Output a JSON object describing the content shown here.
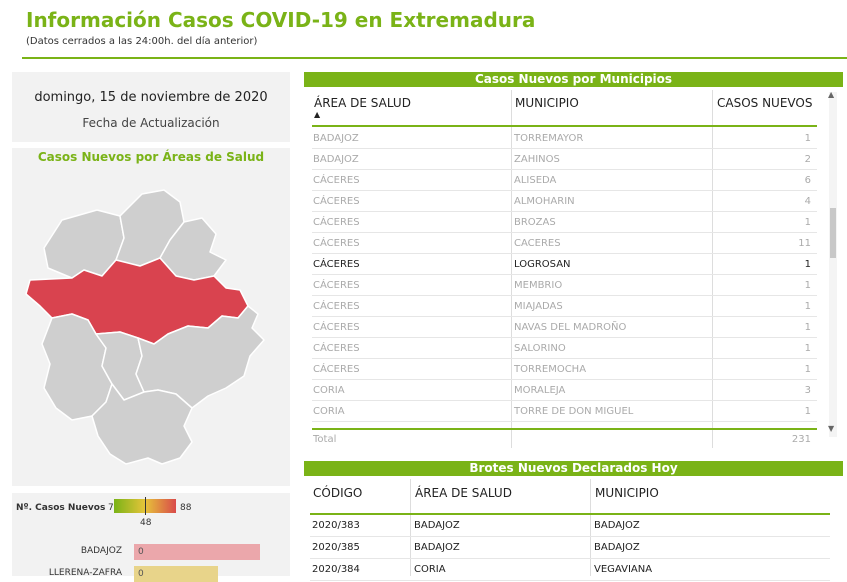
{
  "header": {
    "title": "Información Casos COVID-19 en Extremadura",
    "subtitle": "(Datos cerrados a las 24:00h. del día anterior)"
  },
  "date_card": {
    "date": "domingo, 15 de noviembre de 2020",
    "label": "Fecha de Actualización"
  },
  "map": {
    "title": "Casos Nuevos por Áreas de Salud",
    "highlight_color": "#d9434f",
    "base_color": "#cfcfcf"
  },
  "legend": {
    "label": "Nº. Casos Nuevos",
    "min": "7",
    "max": "88",
    "mid": "48",
    "bars": [
      {
        "name": "BADAJOZ",
        "value": "0",
        "color": "#eba7ab",
        "fraction": 0.84
      },
      {
        "name": "LLERENA-ZAFRA",
        "value": "0",
        "color": "#e8d48a",
        "fraction": 0.56
      }
    ]
  },
  "municipios": {
    "title": "Casos Nuevos por Municipios",
    "columns": [
      "ÁREA DE SALUD",
      "MUNICIPIO",
      "CASOS NUEVOS"
    ],
    "sort_icon": "sort-up-icon",
    "rows": [
      {
        "area": "BADAJOZ",
        "municipio": "TORREMAYOR",
        "casos": "1",
        "highlight": false
      },
      {
        "area": "BADAJOZ",
        "municipio": "ZAHINOS",
        "casos": "2",
        "highlight": false
      },
      {
        "area": "CÁCERES",
        "municipio": "ALISEDA",
        "casos": "6",
        "highlight": false
      },
      {
        "area": "CÁCERES",
        "municipio": "ALMOHARIN",
        "casos": "4",
        "highlight": false
      },
      {
        "area": "CÁCERES",
        "municipio": "BROZAS",
        "casos": "1",
        "highlight": false
      },
      {
        "area": "CÁCERES",
        "municipio": "CACERES",
        "casos": "11",
        "highlight": false
      },
      {
        "area": "CÁCERES",
        "municipio": "LOGROSAN",
        "casos": "1",
        "highlight": true
      },
      {
        "area": "CÁCERES",
        "municipio": "MEMBRIO",
        "casos": "1",
        "highlight": false
      },
      {
        "area": "CÁCERES",
        "municipio": "MIAJADAS",
        "casos": "1",
        "highlight": false
      },
      {
        "area": "CÁCERES",
        "municipio": "NAVAS DEL MADROÑO",
        "casos": "1",
        "highlight": false
      },
      {
        "area": "CÁCERES",
        "municipio": "SALORINO",
        "casos": "1",
        "highlight": false
      },
      {
        "area": "CÁCERES",
        "municipio": "TORREMOCHA",
        "casos": "1",
        "highlight": false
      },
      {
        "area": "CORIA",
        "municipio": "MORALEJA",
        "casos": "3",
        "highlight": false
      },
      {
        "area": "CORIA",
        "municipio": "TORRE DE DON MIGUEL",
        "casos": "1",
        "highlight": false
      }
    ],
    "total_label": "Total",
    "total_value": "231"
  },
  "brotes": {
    "title": "Brotes Nuevos Declarados Hoy",
    "columns": [
      "CÓDIGO",
      "ÁREA DE SALUD",
      "MUNICIPIO"
    ],
    "rows": [
      {
        "codigo": "2020/383",
        "area": "BADAJOZ",
        "municipio": "BADAJOZ"
      },
      {
        "codigo": "2020/385",
        "area": "BADAJOZ",
        "municipio": "BADAJOZ"
      },
      {
        "codigo": "2020/384",
        "area": "CORIA",
        "municipio": "VEGAVIANA"
      }
    ]
  }
}
